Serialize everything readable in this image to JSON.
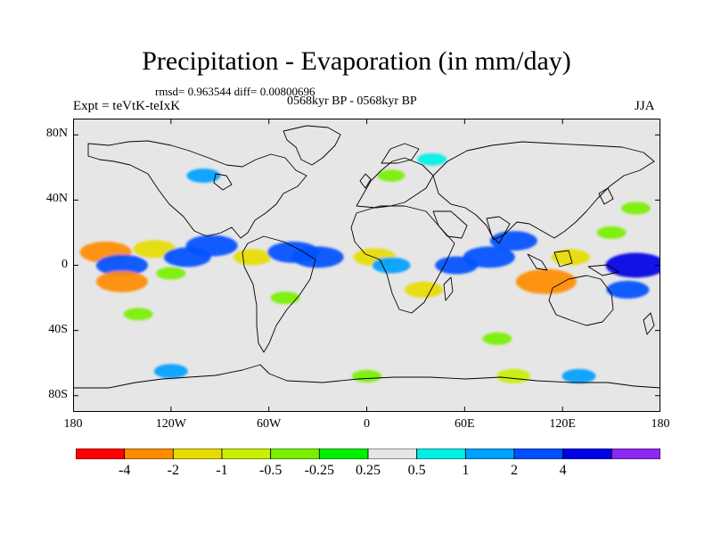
{
  "title": "Precipitation - Evaporation (in mm/day)",
  "stats": "rmsd= 0.963544 diff= 0.00800696",
  "period": "0568kyr BP - 0568kyr BP",
  "experiment": "Expt = teVtK-teIxK",
  "season": "JJA",
  "map": {
    "projection": "cylindrical-equidistant",
    "lon_range": [
      -180,
      180
    ],
    "lat_range": [
      -90,
      90
    ],
    "lat_tick_values": [
      80,
      40,
      0,
      -40,
      -80
    ],
    "lat_tick_labels": [
      "80N",
      "40N",
      "0",
      "40S",
      "80S"
    ],
    "lon_tick_values": [
      -180,
      -120,
      -60,
      0,
      60,
      120,
      180
    ],
    "lon_tick_labels": [
      "180",
      "120W",
      "60W",
      "0",
      "60E",
      "120E",
      "180"
    ],
    "background_color": "#e6e6e6",
    "coastline_color": "#000000"
  },
  "colorbar": {
    "colors": [
      "#ff0000",
      "#ff8c00",
      "#e6dc00",
      "#c8f000",
      "#78f000",
      "#00f000",
      "#e6e6e6",
      "#00f0e6",
      "#00a0ff",
      "#0050ff",
      "#0000e6",
      "#8c28f0"
    ],
    "labels": [
      "-4",
      "-2",
      "-1",
      "-0.5",
      "-0.25",
      "0.25",
      "0.5",
      "1",
      "2",
      "4"
    ]
  },
  "chart_data": {
    "type": "heatmap",
    "title": "Precipitation - Evaporation (in mm/day)",
    "variable_units": "mm/day",
    "contour_levels": [
      -4,
      -2,
      -1,
      -0.5,
      -0.25,
      0.25,
      0.5,
      1,
      2,
      4
    ],
    "regions": [
      {
        "lon": -160,
        "lat": 8,
        "value": -3
      },
      {
        "lon": -150,
        "lat": 0,
        "value": 3
      },
      {
        "lon": -130,
        "lat": 10,
        "value": -2
      },
      {
        "lon": -110,
        "lat": 5,
        "value": 2.5
      },
      {
        "lon": -95,
        "lat": 12,
        "value": 3
      },
      {
        "lon": -70,
        "lat": 5,
        "value": -1.5
      },
      {
        "lon": -45,
        "lat": 8,
        "value": 3
      },
      {
        "lon": -30,
        "lat": 5,
        "value": 3
      },
      {
        "lon": -150,
        "lat": -10,
        "value": -3
      },
      {
        "lon": -120,
        "lat": -5,
        "value": -0.5
      },
      {
        "lon": -50,
        "lat": -20,
        "value": -0.5
      },
      {
        "lon": 5,
        "lat": 5,
        "value": -2
      },
      {
        "lon": 15,
        "lat": 0,
        "value": 1.5
      },
      {
        "lon": 35,
        "lat": -15,
        "value": -1.5
      },
      {
        "lon": 55,
        "lat": 0,
        "value": 2
      },
      {
        "lon": 75,
        "lat": 5,
        "value": 3
      },
      {
        "lon": 90,
        "lat": 15,
        "value": 2.5
      },
      {
        "lon": 110,
        "lat": -10,
        "value": -4
      },
      {
        "lon": 125,
        "lat": 5,
        "value": -1.5
      },
      {
        "lon": 165,
        "lat": 0,
        "value": 4
      },
      {
        "lon": 150,
        "lat": 20,
        "value": -0.5
      },
      {
        "lon": 165,
        "lat": 35,
        "value": -0.5
      },
      {
        "lon": 160,
        "lat": -15,
        "value": 2
      },
      {
        "lon": -100,
        "lat": 55,
        "value": 1
      },
      {
        "lon": 15,
        "lat": 55,
        "value": -0.3
      },
      {
        "lon": 40,
        "lat": 65,
        "value": 0.5
      },
      {
        "lon": 80,
        "lat": -45,
        "value": -0.5
      },
      {
        "lon": -140,
        "lat": -30,
        "value": -0.5
      },
      {
        "lon": -120,
        "lat": -65,
        "value": 1
      },
      {
        "lon": 0,
        "lat": -68,
        "value": -0.5
      },
      {
        "lon": 90,
        "lat": -68,
        "value": -1
      },
      {
        "lon": 130,
        "lat": -68,
        "value": 1
      }
    ]
  }
}
